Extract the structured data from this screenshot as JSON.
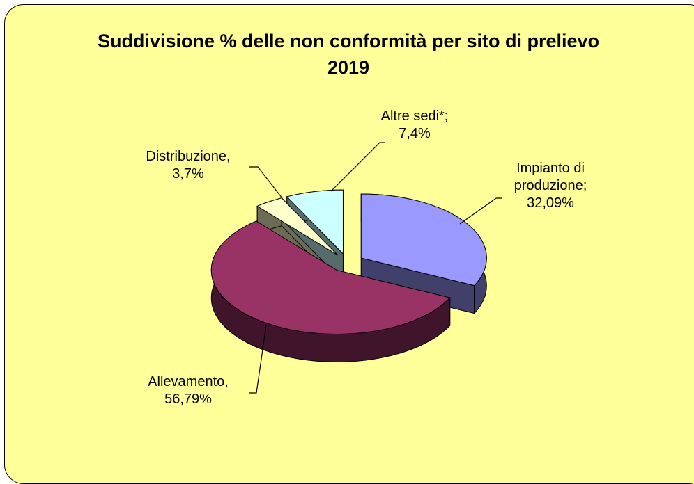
{
  "chart_data": {
    "type": "pie3d",
    "title": "Suddivisione % delle non conformità per sito di prelievo 2019",
    "categories": [
      "Impianto di produzione;",
      "Allevamento,",
      "Distribuzione,",
      "Altre sedi*;"
    ],
    "values": [
      32.09,
      56.79,
      3.7,
      7.4
    ],
    "value_labels": [
      "32,09%",
      "56,79%",
      "3,7%",
      "7,4%"
    ],
    "colors": [
      "#9999ff",
      "#993366",
      "#ffffcc",
      "#ccffff"
    ]
  }
}
